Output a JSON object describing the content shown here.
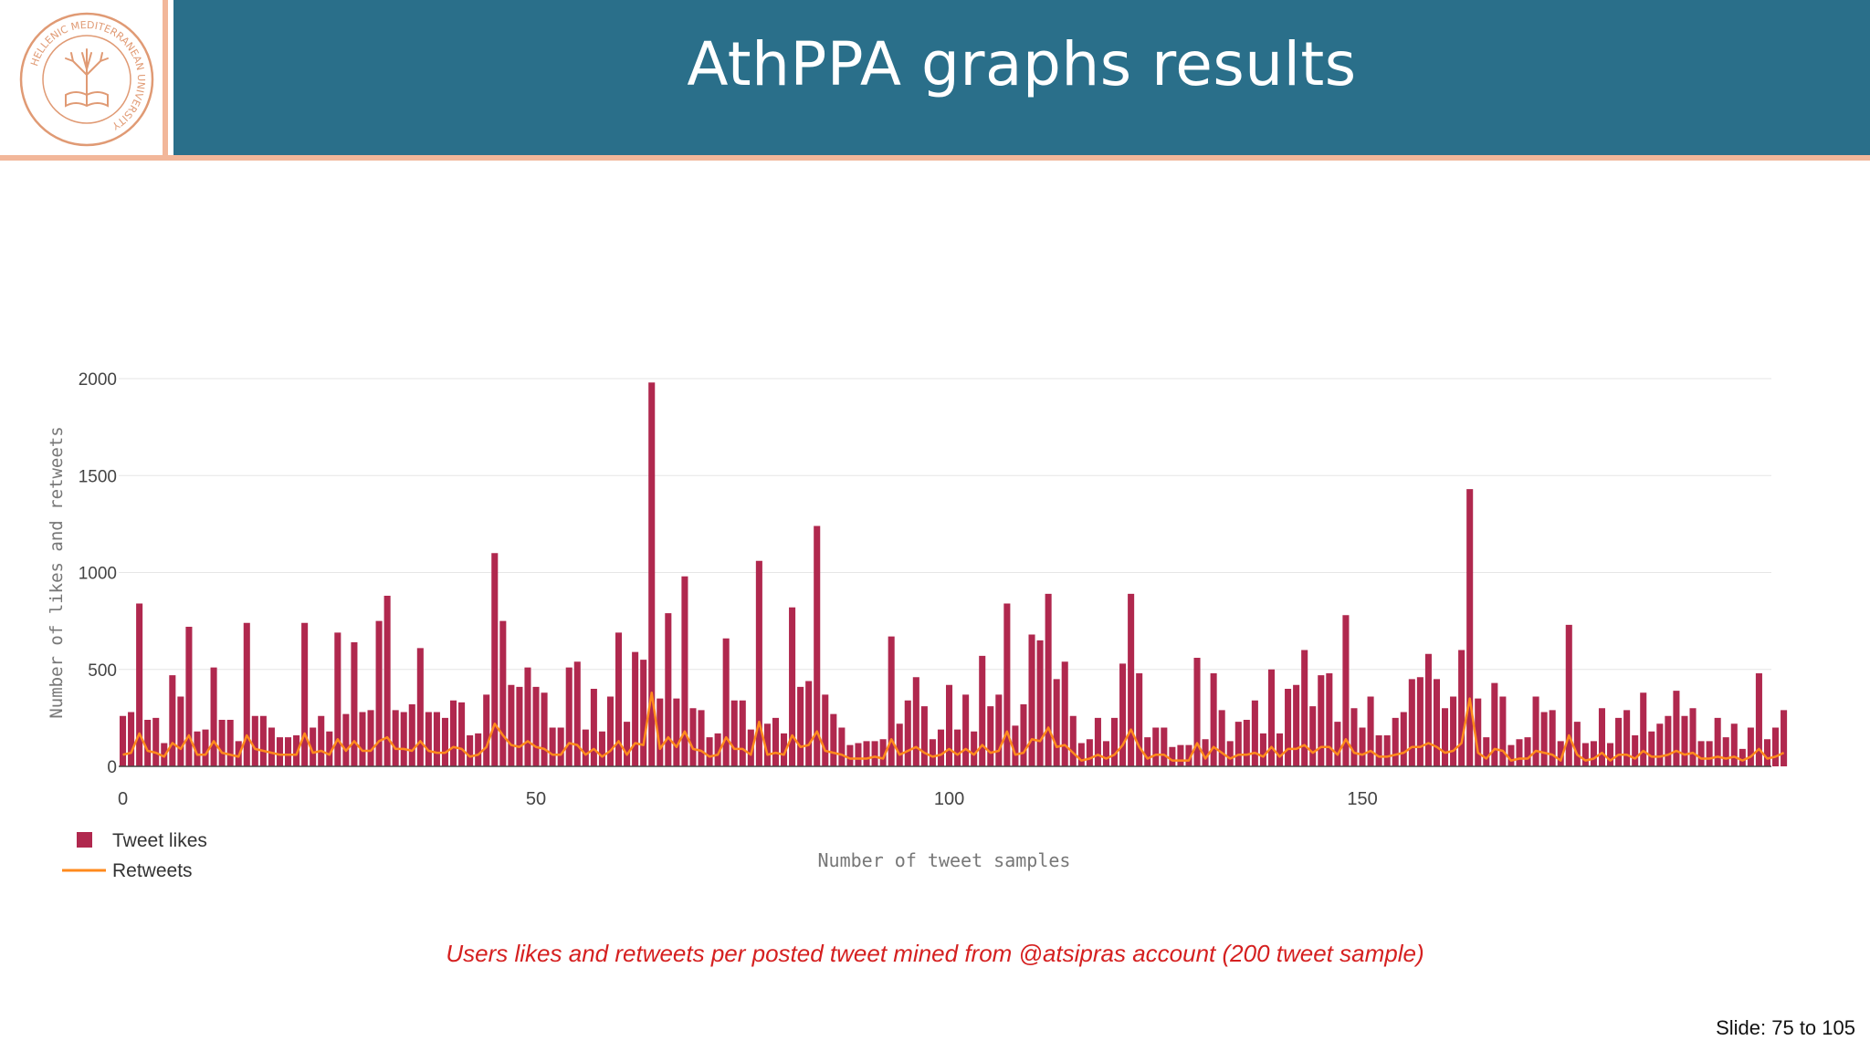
{
  "slide": {
    "title": "AthPPA graphs results",
    "caption": "Users likes and retweets per posted tweet mined from @atsipras account (200 tweet sample)",
    "slide_number": "Slide:  75  to 105"
  },
  "logo": {
    "ring_text": "HELLENIC MEDITERRANEAN UNIVERSITY",
    "color": "#e09a74"
  },
  "colors": {
    "header": "#2a6f8a",
    "accent": "#f2b79a",
    "bar": "#b0284e",
    "line": "#ff8a1c",
    "caption": "#d52020"
  },
  "chart_data": {
    "type": "bar",
    "xlabel": "Number of tweet samples",
    "ylabel": "Number of likes and retweets",
    "xlim": [
      -0.5,
      199.5
    ],
    "ylim": [
      0,
      2000
    ],
    "x_ticks": [
      0,
      50,
      100,
      150
    ],
    "y_ticks": [
      0,
      500,
      1000,
      1500,
      2000
    ],
    "grid": true,
    "legend_position": "bottom-left",
    "series": [
      {
        "name": "Tweet likes",
        "type": "bar",
        "values": [
          260,
          280,
          840,
          240,
          250,
          120,
          470,
          360,
          720,
          180,
          190,
          510,
          240,
          240,
          130,
          740,
          260,
          260,
          200,
          150,
          150,
          160,
          740,
          200,
          260,
          180,
          690,
          270,
          640,
          280,
          290,
          750,
          880,
          290,
          280,
          320,
          610,
          280,
          280,
          250,
          340,
          330,
          160,
          170,
          370,
          1100,
          750,
          420,
          410,
          510,
          410,
          380,
          200,
          200,
          510,
          540,
          190,
          400,
          180,
          360,
          690,
          230,
          590,
          550,
          1980,
          350,
          790,
          350,
          980,
          300,
          290,
          150,
          170,
          660,
          340,
          340,
          190,
          1060,
          220,
          250,
          170,
          820,
          410,
          440,
          1240,
          370,
          270,
          200,
          110,
          120,
          130,
          130,
          140,
          670,
          220,
          340,
          460,
          310,
          140,
          190,
          420,
          190,
          370,
          180,
          570,
          310,
          370,
          840,
          210,
          320,
          680,
          650,
          890,
          450,
          540,
          260,
          120,
          140,
          250,
          130,
          250,
          530,
          890,
          480,
          150,
          200,
          200,
          100,
          110,
          110,
          560,
          140,
          480,
          290,
          130,
          230,
          240,
          340,
          170,
          500,
          170,
          400,
          420,
          600,
          310,
          470,
          480,
          230,
          780,
          300,
          200,
          360,
          160,
          160,
          250,
          280,
          450,
          460,
          580,
          450,
          300,
          360,
          600,
          1430,
          350,
          150,
          430,
          360,
          110,
          140,
          150,
          360,
          280,
          290,
          130,
          730,
          230,
          120,
          130,
          300,
          120,
          250,
          290,
          160,
          380,
          180,
          220,
          260,
          390,
          260,
          300,
          130,
          130,
          250,
          150,
          220,
          90,
          200,
          480,
          140,
          200,
          290
        ]
      },
      {
        "name": "Retweets",
        "type": "line",
        "values": [
          60,
          70,
          170,
          80,
          70,
          50,
          120,
          90,
          160,
          60,
          60,
          130,
          70,
          60,
          50,
          160,
          90,
          80,
          70,
          60,
          60,
          60,
          170,
          70,
          80,
          60,
          140,
          80,
          130,
          80,
          80,
          130,
          150,
          90,
          90,
          80,
          130,
          80,
          70,
          70,
          100,
          90,
          50,
          60,
          100,
          220,
          160,
          110,
          100,
          130,
          100,
          90,
          60,
          60,
          120,
          110,
          60,
          90,
          50,
          80,
          130,
          60,
          120,
          110,
          380,
          90,
          150,
          100,
          180,
          90,
          80,
          50,
          60,
          150,
          90,
          90,
          60,
          230,
          60,
          70,
          60,
          160,
          100,
          110,
          180,
          80,
          70,
          60,
          40,
          40,
          40,
          50,
          40,
          140,
          60,
          80,
          100,
          70,
          50,
          60,
          90,
          60,
          90,
          60,
          110,
          70,
          80,
          180,
          60,
          70,
          140,
          130,
          200,
          100,
          110,
          70,
          30,
          40,
          60,
          40,
          60,
          110,
          190,
          100,
          40,
          60,
          60,
          30,
          30,
          30,
          120,
          40,
          100,
          70,
          40,
          60,
          60,
          70,
          50,
          100,
          50,
          90,
          90,
          110,
          70,
          100,
          100,
          60,
          140,
          70,
          60,
          80,
          50,
          50,
          60,
          70,
          100,
          100,
          120,
          100,
          70,
          80,
          120,
          350,
          70,
          40,
          90,
          80,
          30,
          40,
          40,
          80,
          70,
          60,
          30,
          160,
          60,
          30,
          40,
          70,
          30,
          60,
          60,
          40,
          80,
          50,
          50,
          60,
          80,
          60,
          70,
          40,
          40,
          50,
          40,
          50,
          30,
          50,
          90,
          40,
          50,
          70
        ]
      }
    ]
  }
}
